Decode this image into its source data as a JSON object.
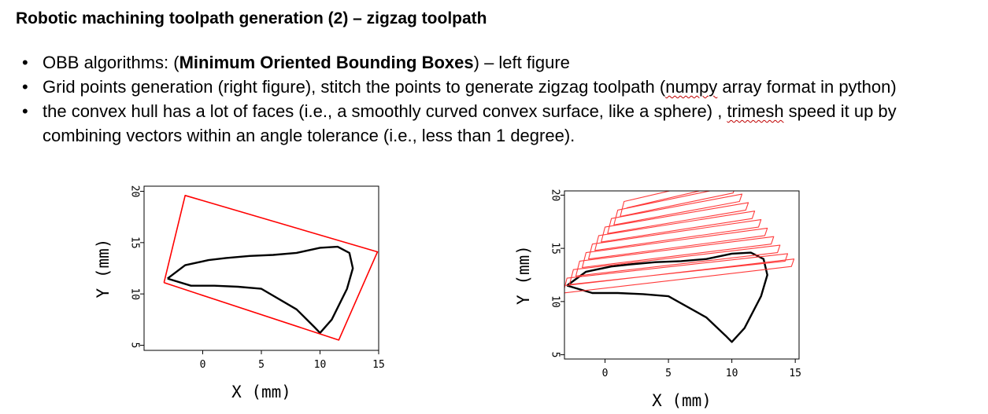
{
  "slide": {
    "title": "Robotic machining toolpath generation (2) – zigzag toolpath",
    "bullet1_pre": "OBB algorithms: (",
    "bullet1_bold": "Minimum Oriented Bounding Boxes",
    "bullet1_post": ") – left figure",
    "bullet2_pre": "Grid points generation (right figure), stitch the points to generate zigzag toolpath (",
    "bullet2_squig": "numpy",
    "bullet2_post": " array format in python)",
    "bullet3_pre": "the convex hull has a lot of faces (i.e., a smoothly curved convex surface, like a sphere) , ",
    "bullet3_squig": "trimesh",
    "bullet3_post": " speed it up by combining vectors within an angle tolerance (i.e., less than 1 degree).",
    "bullet_char": "•"
  },
  "colors": {
    "outline": "#000000",
    "obb": "#ff0000",
    "toolpath": "#ff3b3b"
  },
  "chart_data": [
    {
      "type": "line",
      "title": "",
      "xlabel": "X (mm)",
      "ylabel": "Y (mm)",
      "xlim": [
        -5,
        15
      ],
      "ylim": [
        4.5,
        20.5
      ],
      "xticks": [
        0,
        5,
        10,
        15
      ],
      "yticks": [
        5,
        10,
        15,
        20
      ],
      "series": [
        {
          "role": "outline",
          "x": [
            -3,
            -1.5,
            0.5,
            2,
            4,
            6,
            8,
            10,
            11.5,
            12.5,
            12.8,
            12.3,
            11,
            10,
            9.5,
            8,
            5,
            3,
            1,
            -1,
            -3
          ],
          "y": [
            11.5,
            12.8,
            13.3,
            13.5,
            13.7,
            13.8,
            14,
            14.5,
            14.6,
            14,
            12.5,
            10.5,
            7.5,
            6.2,
            6.8,
            8.5,
            10.5,
            10.7,
            10.8,
            10.8,
            11.5
          ]
        },
        {
          "role": "obb",
          "x": [
            -3.3,
            -1.5,
            14.9,
            11.6,
            -3.3
          ],
          "y": [
            11.1,
            19.6,
            14.1,
            5.5,
            11.1
          ]
        }
      ]
    },
    {
      "type": "line",
      "title": "",
      "xlabel": "X (mm)",
      "ylabel": "Y (mm)",
      "xlim": [
        -3.2,
        15.3
      ],
      "ylim": [
        4.6,
        20.4
      ],
      "xticks": [
        0,
        5,
        10,
        15
      ],
      "yticks": [
        5,
        10,
        15,
        20
      ],
      "series": [
        {
          "role": "outline",
          "x": [
            -3,
            -1.5,
            0.5,
            2,
            4,
            6,
            8,
            10,
            11.5,
            12.5,
            12.8,
            12.3,
            11,
            10,
            9.5,
            8,
            5,
            3,
            1,
            -1,
            -3
          ],
          "y": [
            11.5,
            12.8,
            13.3,
            13.5,
            13.7,
            13.8,
            14,
            14.5,
            14.6,
            14,
            12.5,
            10.5,
            7.5,
            6.2,
            6.8,
            8.5,
            10.5,
            10.7,
            10.8,
            10.8,
            11.5
          ]
        },
        {
          "role": "zigzag",
          "x": [
            -3.1,
            14.9,
            14.7,
            -3.3,
            -3.0,
            14.4,
            14.2,
            -2.8,
            -2.5,
            13.8,
            13.6,
            -2.3,
            -2.0,
            13.3,
            13.1,
            -1.8,
            -1.5,
            12.8,
            12.6,
            -1.3,
            -1.0,
            12.3,
            12.1,
            -0.8,
            -0.5,
            11.8,
            11.6,
            -0.3,
            0.0,
            11.3,
            11.1,
            0.2,
            0.5,
            10.8,
            10.6,
            0.7,
            1.0,
            10.3,
            10.1,
            1.2,
            1.5,
            9.8,
            9.6,
            1.7
          ],
          "y": [
            11.5,
            14.0,
            13.3,
            10.8,
            12.2,
            14.5,
            13.8,
            11.6,
            13.0,
            15.3,
            14.6,
            12.4,
            13.8,
            16.1,
            15.4,
            13.2,
            14.6,
            16.9,
            16.2,
            14.0,
            15.4,
            17.7,
            17.0,
            14.8,
            16.2,
            18.5,
            17.8,
            15.6,
            17.0,
            19.3,
            18.6,
            16.4,
            17.8,
            20.1,
            19.4,
            17.2,
            18.6,
            20.9,
            20.2,
            18.0,
            19.4,
            21.7,
            21.0,
            18.8
          ]
        }
      ]
    }
  ]
}
